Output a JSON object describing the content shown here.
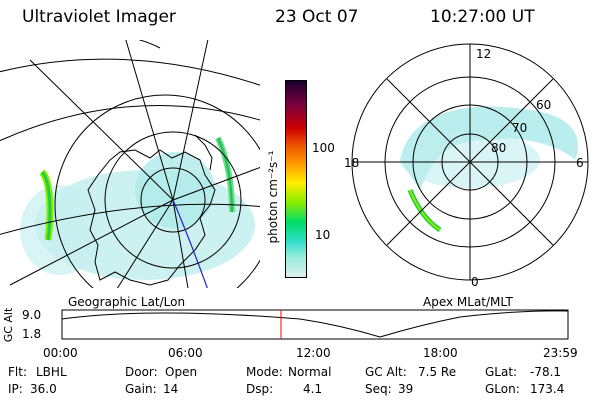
{
  "header": {
    "instrument": "Ultraviolet Imager",
    "date": "23 Oct 07",
    "time": "10:27:00 UT"
  },
  "colorbar": {
    "unit_label": "photon cm⁻²s⁻¹",
    "ticks": [
      "100",
      "10"
    ],
    "scale": "log",
    "colors": [
      "#1a0030",
      "#7a0040",
      "#cc0000",
      "#ee5500",
      "#ff9900",
      "#ffee00",
      "#88ee00",
      "#00dd66",
      "#33ddcc",
      "#99eedd",
      "#ddeeee"
    ]
  },
  "left_panel": {
    "label": "Geographic Lat/Lon"
  },
  "right_panel": {
    "label": "Apex MLat/MLT",
    "mlt_labels": {
      "top": "12",
      "right": "6",
      "bottom": "0",
      "left": "18"
    },
    "lat_labels": [
      "60",
      "70",
      "80"
    ]
  },
  "altitude_plot": {
    "ylabel": "GC Alt",
    "yticks": [
      "9.0",
      "1.8"
    ],
    "xticks": [
      "00:00",
      "06:00",
      "12:00",
      "18:00",
      "23:59"
    ],
    "current_marker_time": "10:27",
    "marker_color": "#ff0000"
  },
  "info": {
    "flt_label": "Flt:",
    "flt_value": "LBHL",
    "door_label": "Door:",
    "door_value": "Open",
    "mode_label": "Mode:",
    "mode_value": "Normal",
    "gcalt_label": "GC Alt:",
    "gcalt_value": "7.5 Re",
    "glat_label": "GLat:",
    "glat_value": "-78.1",
    "ip_label": "IP:",
    "ip_value": "36.0",
    "gain_label": "Gain:",
    "gain_value": "14",
    "dsp_label": "Dsp:",
    "dsp_value": "4.1",
    "seq_label": "Seq:",
    "seq_value": "39",
    "glon_label": "GLon:",
    "glon_value": "173.4"
  }
}
